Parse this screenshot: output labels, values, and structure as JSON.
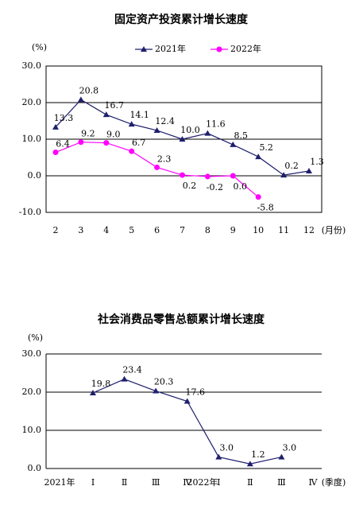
{
  "chart_data": [
    {
      "type": "line",
      "title": "固定资产投资累计增长速度",
      "y_unit": "(%)",
      "x_label": "(月份)",
      "categories": [
        "2",
        "3",
        "4",
        "5",
        "6",
        "7",
        "8",
        "9",
        "10",
        "11",
        "12"
      ],
      "series": [
        {
          "name": "2021年",
          "color": "#1f1f6e",
          "marker": "triangle",
          "values": [
            13.3,
            20.8,
            16.7,
            14.1,
            12.4,
            10.0,
            11.6,
            8.5,
            5.2,
            0.2,
            1.3
          ],
          "value_labels": [
            "13.3",
            "20.8",
            "16.7",
            "14.1",
            "12.4",
            "10.0",
            "11.6",
            "8.5",
            "5.2",
            "0.2",
            "1.3"
          ]
        },
        {
          "name": "2022年",
          "color": "#ff00ff",
          "marker": "circle",
          "values": [
            6.4,
            9.2,
            9.0,
            6.7,
            2.3,
            0.2,
            -0.2,
            0.0,
            -5.8,
            null,
            null
          ],
          "value_labels": [
            "6.4",
            "9.2",
            "9.0",
            "6.7",
            "2.3",
            "0.2",
            "-0.2",
            "0.0",
            "-5.8",
            null,
            null
          ]
        }
      ],
      "ylim": [
        -10,
        30
      ],
      "yticks": [
        {
          "value": -10,
          "label": "-10.0"
        },
        {
          "value": 0,
          "label": "0.0"
        },
        {
          "value": 10,
          "label": "10.0"
        },
        {
          "value": 20,
          "label": "20.0"
        },
        {
          "value": 30,
          "label": "30.0"
        }
      ],
      "grid": true,
      "legend": "top"
    },
    {
      "type": "line",
      "title": "社会消费品零售总额累计增长速度",
      "y_unit": "(%)",
      "x_label": "(季度)",
      "year_labels": [
        "2021年",
        "2022年"
      ],
      "categories": [
        "Ⅰ",
        "Ⅱ",
        "Ⅲ",
        "Ⅳ",
        "Ⅰ",
        "Ⅱ",
        "Ⅲ",
        "Ⅳ"
      ],
      "series": [
        {
          "name": "社会消费品零售总额",
          "color": "#1f1f6e",
          "marker": "triangle",
          "values": [
            19.8,
            23.4,
            20.3,
            17.6,
            3.0,
            1.2,
            3.0,
            null
          ],
          "value_labels": [
            "19.8",
            "23.4",
            "20.3",
            "17.6",
            "3.0",
            "1.2",
            "3.0",
            null
          ]
        }
      ],
      "ylim": [
        0,
        30
      ],
      "yticks": [
        {
          "value": 0,
          "label": "0.0"
        },
        {
          "value": 10,
          "label": "10.0"
        },
        {
          "value": 20,
          "label": "20.0"
        },
        {
          "value": 30,
          "label": "30.0"
        }
      ],
      "grid": true,
      "legend": "none"
    }
  ]
}
